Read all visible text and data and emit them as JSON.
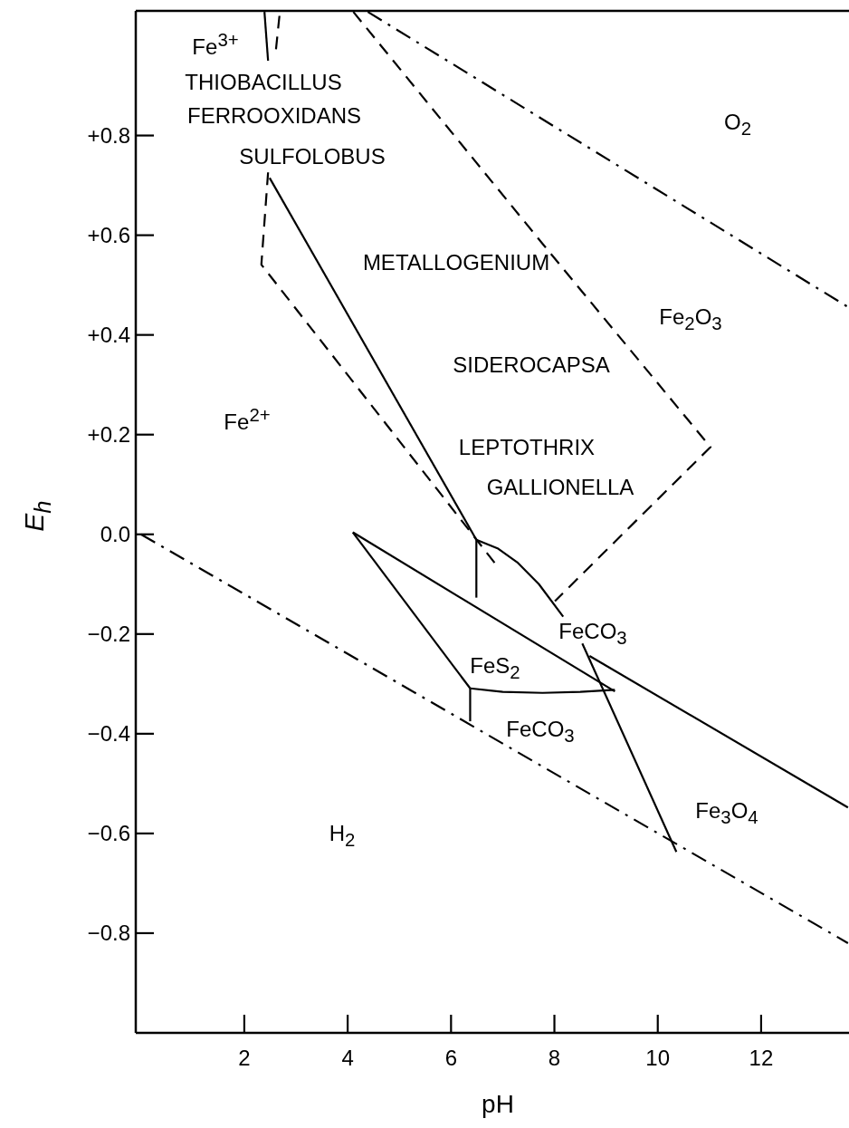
{
  "chart_data": {
    "type": "line",
    "xlabel": "pH",
    "ylabel": "E$_{h}$",
    "xlim": [
      -0.1,
      13.7
    ],
    "ylim": [
      -1.0,
      1.05
    ],
    "xticks": [
      2,
      4,
      6,
      8,
      10,
      12
    ],
    "yticks": [
      {
        "value": 0.8,
        "label": "+0.8"
      },
      {
        "value": 0.6,
        "label": "+0.6"
      },
      {
        "value": 0.4,
        "label": "+0.4"
      },
      {
        "value": 0.2,
        "label": "+0.2"
      },
      {
        "value": 0,
        "label": "0.0"
      },
      {
        "value": -0.2,
        "label": "−0.2"
      },
      {
        "value": -0.4,
        "label": "−0.4"
      },
      {
        "value": -0.6,
        "label": "−0.6"
      },
      {
        "value": -0.8,
        "label": "−0.8"
      }
    ],
    "series": [
      {
        "color": "#000000",
        "line_style": "dashdot",
        "x": [
          4.39,
          13.68
        ],
        "values": [
          1.048,
          0.456
        ]
      },
      {
        "color": "#000000",
        "line_style": "dashdot",
        "x": [
          0,
          13.68
        ],
        "values": [
          0,
          -0.82
        ]
      },
      {
        "color": "#000000",
        "line_style": "solid",
        "x": [
          2.39,
          2.46
        ],
        "values": [
          1.048,
          0.95
        ]
      },
      {
        "color": "#000000",
        "line_style": "dashed",
        "x": [
          2.68,
          2.61
        ],
        "values": [
          1.04,
          0.97
        ]
      },
      {
        "color": "#000000",
        "line_style": "dashed",
        "x": [
          2.46,
          2.33,
          6.88
        ],
        "values": [
          0.726,
          0.541,
          -0.062
        ]
      },
      {
        "color": "#000000",
        "line_style": "solid",
        "x": [
          2.49,
          6.49
        ],
        "values": [
          0.715,
          -0.011
        ]
      },
      {
        "color": "#000000",
        "line_style": "dashed",
        "x": [
          4.11,
          7.77,
          11.02,
          8.01
        ],
        "values": [
          1.048,
          0.583,
          0.175,
          -0.134
        ]
      },
      {
        "color": "#000000",
        "line_style": "solid",
        "x": [
          6.49,
          6.9,
          7.28,
          7.7,
          8.17
        ],
        "values": [
          -0.011,
          -0.028,
          -0.056,
          -0.1,
          -0.165
        ]
      },
      {
        "color": "#000000",
        "line_style": "solid",
        "x": [
          6.49,
          6.49
        ],
        "values": [
          -0.011,
          -0.127
        ]
      },
      {
        "color": "#000000",
        "line_style": "solid",
        "x": [
          4.1,
          9.17
        ],
        "values": [
          0.004,
          -0.315
        ]
      },
      {
        "color": "#000000",
        "line_style": "solid",
        "x": [
          4.1,
          6.37
        ],
        "values": [
          0.004,
          -0.309
        ]
      },
      {
        "color": "#000000",
        "line_style": "solid",
        "x": [
          6.37,
          7.0,
          7.77,
          8.5,
          9.17
        ],
        "values": [
          -0.309,
          -0.316,
          -0.318,
          -0.316,
          -0.312
        ]
      },
      {
        "color": "#000000",
        "line_style": "solid",
        "x": [
          6.37,
          6.37
        ],
        "values": [
          -0.309,
          -0.375
        ]
      },
      {
        "color": "#000000",
        "line_style": "solid",
        "x": [
          8.54,
          10.36
        ],
        "values": [
          -0.219,
          -0.637
        ]
      },
      {
        "color": "#000000",
        "line_style": "solid",
        "x": [
          8.68,
          13.68
        ],
        "values": [
          -0.244,
          -0.548
        ]
      }
    ],
    "annotations": [
      "Fe$^{3+}$",
      "THIOBACILLUS",
      "FERROOXIDANS",
      "SULFOLOBUS",
      "METALLOGENIUM",
      "SIDEROCAPSA",
      "LEPTOTHRIX",
      "GALLIONELLA",
      "O$_{2}$",
      "Fe$_{2}$O$_{3}$",
      "Fe$^{2+}$",
      "FeCO$_{3}$",
      "FeS$_{2}$",
      "FeCO$_{3}$",
      "H$_{2}$",
      "Fe$_{3}$O$_{4}$"
    ]
  }
}
